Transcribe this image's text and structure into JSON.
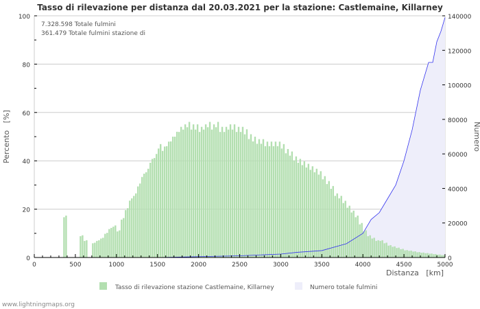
{
  "chart_data": {
    "type": "bar",
    "title": "Tasso di rilevazione per distanza dal 20.03.2021 per la stazione: Castlemaine, Killarney",
    "annotations": [
      "7.328.598 Totale fulmini",
      "361.479 Totale fulmini stazione di"
    ],
    "xlabel": "Distanza   [km]",
    "ylabel": "Percento   [%]",
    "y2label": "Numero",
    "xlim": [
      0,
      5000
    ],
    "ylim": [
      0,
      100
    ],
    "y2lim": [
      0,
      140000
    ],
    "xticks": [
      "0",
      "500",
      "1000",
      "1500",
      "2000",
      "2500",
      "3000",
      "3500",
      "4000",
      "4500",
      "5000"
    ],
    "yticks": [
      "0",
      "20",
      "40",
      "60",
      "80",
      "100"
    ],
    "y2ticks": [
      "0",
      "20000",
      "40000",
      "60000",
      "80000",
      "100000",
      "120000",
      "140000"
    ],
    "grid": true,
    "legend_position": "bottom",
    "bin_width_km": 50,
    "series": [
      {
        "name": "Tasso di rilevazione stazione Castlemaine, Killarney",
        "type": "bar",
        "axis": "left",
        "color": "#b3dfb0",
        "x": [
          0,
          50,
          100,
          150,
          200,
          250,
          300,
          350,
          400,
          450,
          500,
          550,
          600,
          650,
          700,
          750,
          800,
          850,
          900,
          950,
          1000,
          1050,
          1100,
          1150,
          1200,
          1250,
          1300,
          1350,
          1400,
          1450,
          1500,
          1550,
          1600,
          1650,
          1700,
          1750,
          1800,
          1850,
          1900,
          1950,
          2000,
          2050,
          2100,
          2150,
          2200,
          2250,
          2300,
          2350,
          2400,
          2450,
          2500,
          2550,
          2600,
          2650,
          2700,
          2750,
          2800,
          2850,
          2900,
          2950,
          3000,
          3050,
          3100,
          3150,
          3200,
          3250,
          3300,
          3350,
          3400,
          3450,
          3500,
          3550,
          3600,
          3650,
          3700,
          3750,
          3800,
          3850,
          3900,
          3950,
          4000,
          4050,
          4100,
          4150,
          4200,
          4250,
          4300,
          4350,
          4400,
          4450,
          4500,
          4550,
          4600,
          4650,
          4700,
          4750,
          4800,
          4850,
          4900,
          4950
        ],
        "values": [
          0,
          0,
          0,
          0,
          0,
          0,
          0,
          17,
          0,
          0,
          0,
          9,
          7,
          0,
          6,
          7,
          8,
          10,
          12,
          13,
          11,
          16,
          20,
          24,
          26,
          30,
          34,
          36,
          40,
          42,
          46,
          45,
          47,
          49,
          51,
          53,
          54,
          55,
          54,
          54,
          53,
          54,
          55,
          54,
          55,
          53,
          53,
          54,
          54,
          53,
          53,
          52,
          50,
          49,
          48,
          48,
          47,
          47,
          47,
          47,
          46,
          44,
          43,
          41,
          40,
          39,
          38,
          37,
          36,
          35,
          33,
          31,
          29,
          26,
          25,
          23,
          21,
          19,
          17,
          14,
          11,
          9,
          8,
          7,
          7,
          6,
          5,
          4.5,
          4,
          3.5,
          3,
          2.8,
          2.5,
          2.2,
          2,
          1.8,
          1.6,
          1.4,
          1.2,
          1
        ]
      },
      {
        "name": "Numero totale fulmini",
        "type": "area",
        "axis": "right",
        "color": "#3333ee",
        "fill": "#eeeefa",
        "x": [
          0,
          1500,
          2000,
          2500,
          3000,
          3200,
          3500,
          3800,
          4000,
          4100,
          4200,
          4300,
          4400,
          4500,
          4600,
          4700,
          4800,
          4850,
          4900,
          4950,
          5000
        ],
        "values": [
          0,
          0,
          500,
          1000,
          2000,
          3000,
          4000,
          8000,
          14000,
          22000,
          26000,
          34000,
          42000,
          56000,
          74000,
          97000,
          113000,
          113000,
          125000,
          131000,
          139000
        ]
      }
    ]
  },
  "footer": "www.lightningmaps.org"
}
